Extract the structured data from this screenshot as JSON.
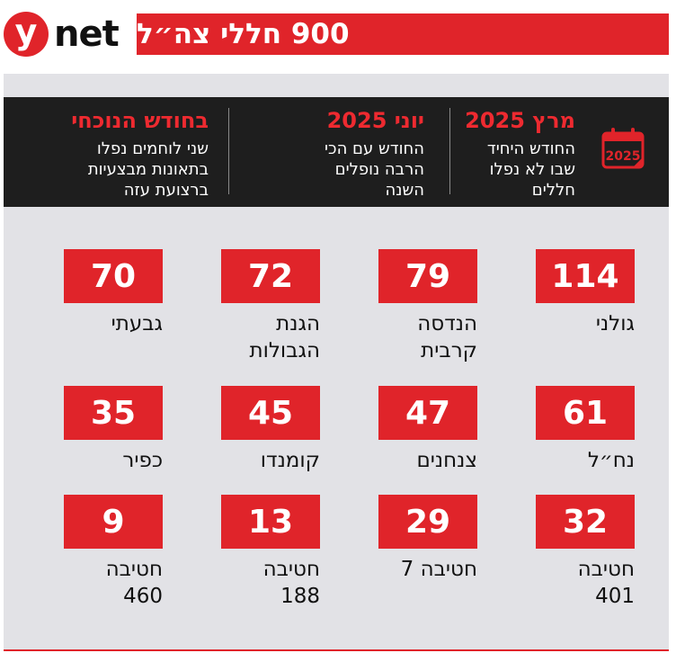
{
  "header": {
    "logo_y": "y",
    "logo_word": "net",
    "title": "900 חללי צה״ל"
  },
  "band": {
    "calendar_icon_year": "2025",
    "columns": [
      {
        "heading": "מרץ 2025",
        "text": "החודש היחיד\nשבו לא נפלו\nחללים"
      },
      {
        "heading": "יוני 2025",
        "text": "החודש עם הכי\nהרבה נופלים\nהשנה"
      },
      {
        "heading": "בחודש הנוכחי",
        "text": "שני לוחמים נפלו\nבתאונות מבצעיות\nברצועת עזה"
      }
    ]
  },
  "stats": [
    {
      "value": "114",
      "label": "גולני"
    },
    {
      "value": "79",
      "label": "הנדסה\nקרבית"
    },
    {
      "value": "72",
      "label": "הגנת\nהגבולות"
    },
    {
      "value": "70",
      "label": "גבעתי"
    },
    {
      "value": "61",
      "label": "נח״ל"
    },
    {
      "value": "47",
      "label": "צנחנים"
    },
    {
      "value": "45",
      "label": "קומנדו"
    },
    {
      "value": "35",
      "label": "כפיר"
    },
    {
      "value": "32",
      "label": "חטיבה\n401"
    },
    {
      "value": "29",
      "label": "חטיבה 7"
    },
    {
      "value": "13",
      "label": "חטיבה\n188"
    },
    {
      "value": "9",
      "label": "חטיבה\n460"
    }
  ],
  "colors": {
    "accent_red": "#e0242a",
    "band_black": "#1e1e1e",
    "panel_gray": "#e2e2e6"
  }
}
